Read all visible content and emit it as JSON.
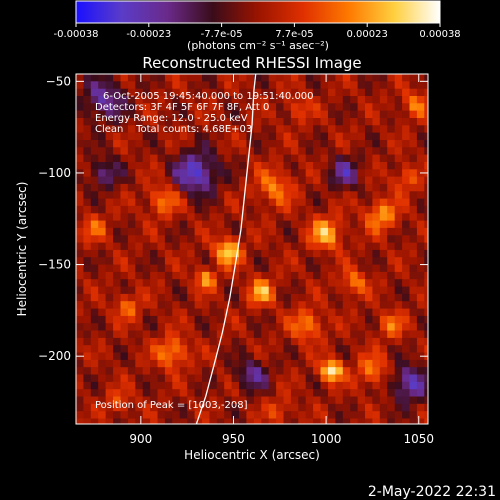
{
  "colorbar": {
    "ticks": [
      "-0.00038",
      "-0.00023",
      "-7.7e-05",
      "7.7e-05",
      "0.00023",
      "0.00038"
    ],
    "unit_label": "(photons cm⁻² s⁻¹ asec⁻²)",
    "colors": [
      "#1a10ff",
      "#5a3cc8",
      "#6a2a8a",
      "#3a0c1a",
      "#9a1400",
      "#e03000",
      "#ff7a00",
      "#ffd040",
      "#ffffff"
    ]
  },
  "chart_data": {
    "type": "heatmap",
    "title": "Reconstructed RHESSI Image",
    "xlabel": "Heliocentric X (arcsec)",
    "ylabel": "Heliocentric Y (arcsec)",
    "xlim": [
      865,
      1055
    ],
    "ylim": [
      -237,
      -46
    ],
    "xticks": [
      900,
      950,
      1000,
      1050
    ],
    "yticks": [
      -50,
      -100,
      -150,
      -200
    ],
    "clim": [
      -0.00038,
      0.00038
    ],
    "peak": {
      "x": 1003,
      "y": -208
    },
    "limb": [
      {
        "x": 930,
        "y": -237
      },
      {
        "x": 935,
        "y": -222
      },
      {
        "x": 940,
        "y": -203
      },
      {
        "x": 944,
        "y": -187
      },
      {
        "x": 948,
        "y": -168
      },
      {
        "x": 951,
        "y": -150
      },
      {
        "x": 954,
        "y": -131
      },
      {
        "x": 956,
        "y": -112
      },
      {
        "x": 958,
        "y": -93
      },
      {
        "x": 960,
        "y": -74
      },
      {
        "x": 961,
        "y": -55
      },
      {
        "x": 962,
        "y": -46
      }
    ],
    "annotations": [
      "6-Oct-2005 19:45:40.000 to 19:51:40.000",
      "Detectors: 3F 4F 5F 6F 7F 8F, Att 0",
      "Energy Range: 12.0 - 25.0 keV",
      "Clean    Total counts: 4.68E+03"
    ],
    "peak_label": "Position of Peak = [1003,-208]",
    "sources": [
      {
        "x": 1003,
        "y": -208,
        "v": 0.00038,
        "s": 4
      },
      {
        "x": 947,
        "y": -143,
        "v": 0.0003,
        "s": 5
      },
      {
        "x": 972,
        "y": -108,
        "v": 0.00018,
        "s": 7
      },
      {
        "x": 1000,
        "y": -133,
        "v": 0.00026,
        "s": 6
      },
      {
        "x": 1030,
        "y": -123,
        "v": 0.00022,
        "s": 6
      },
      {
        "x": 1043,
        "y": -103,
        "v": 0.00015,
        "s": 5
      },
      {
        "x": 917,
        "y": -198,
        "v": 0.00022,
        "s": 6
      },
      {
        "x": 893,
        "y": -173,
        "v": 0.00016,
        "s": 5
      },
      {
        "x": 912,
        "y": -115,
        "v": 0.00018,
        "s": 6
      },
      {
        "x": 990,
        "y": -183,
        "v": 0.0002,
        "s": 6
      },
      {
        "x": 1025,
        "y": -208,
        "v": 0.00018,
        "s": 6
      },
      {
        "x": 1035,
        "y": -183,
        "v": 0.00016,
        "s": 5
      },
      {
        "x": 875,
        "y": -130,
        "v": 0.00014,
        "s": 5
      },
      {
        "x": 965,
        "y": -165,
        "v": 0.00024,
        "s": 5
      },
      {
        "x": 888,
        "y": -225,
        "v": 0.00012,
        "s": 5
      },
      {
        "x": 975,
        "y": -230,
        "v": 0.00012,
        "s": 5
      },
      {
        "x": 1048,
        "y": -63,
        "v": 0.00018,
        "s": 5
      },
      {
        "x": 985,
        "y": -65,
        "v": 0.00012,
        "s": 5
      },
      {
        "x": 935,
        "y": -158,
        "v": 0.00022,
        "s": 4
      },
      {
        "x": 1015,
        "y": -160,
        "v": 0.00018,
        "s": 5
      },
      {
        "x": 930,
        "y": -100,
        "v": -0.0003,
        "s": 8
      },
      {
        "x": 880,
        "y": -60,
        "v": -0.00022,
        "s": 8
      },
      {
        "x": 1045,
        "y": -215,
        "v": -0.00026,
        "s": 7
      },
      {
        "x": 1010,
        "y": -100,
        "v": -0.0002,
        "s": 6
      },
      {
        "x": 880,
        "y": -100,
        "v": -0.00018,
        "s": 6
      },
      {
        "x": 960,
        "y": -210,
        "v": -0.0002,
        "s": 6
      }
    ]
  },
  "footer": {
    "timestamp": "2-May-2022 22:31"
  }
}
